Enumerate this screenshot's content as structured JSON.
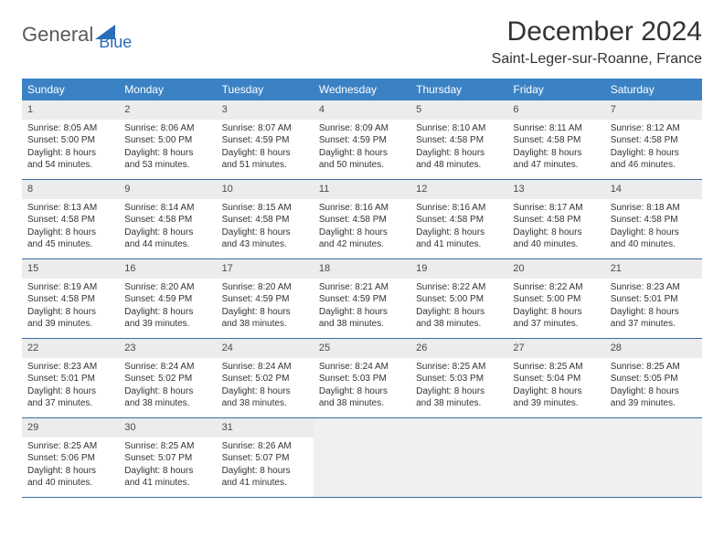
{
  "logo": {
    "text1": "General",
    "text2": "Blue",
    "color_gray": "#6a6a6a",
    "color_blue": "#2a6db8"
  },
  "title": "December 2024",
  "location": "Saint-Leger-sur-Roanne, France",
  "colors": {
    "header_bg": "#3b82c4",
    "header_text": "#ffffff",
    "daynum_bg": "#ececec",
    "border": "#3b6ea0",
    "empty_bg": "#f0f0f0"
  },
  "columns": [
    "Sunday",
    "Monday",
    "Tuesday",
    "Wednesday",
    "Thursday",
    "Friday",
    "Saturday"
  ],
  "weeks": [
    [
      {
        "n": "1",
        "sr": "Sunrise: 8:05 AM",
        "ss": "Sunset: 5:00 PM",
        "d1": "Daylight: 8 hours",
        "d2": "and 54 minutes."
      },
      {
        "n": "2",
        "sr": "Sunrise: 8:06 AM",
        "ss": "Sunset: 5:00 PM",
        "d1": "Daylight: 8 hours",
        "d2": "and 53 minutes."
      },
      {
        "n": "3",
        "sr": "Sunrise: 8:07 AM",
        "ss": "Sunset: 4:59 PM",
        "d1": "Daylight: 8 hours",
        "d2": "and 51 minutes."
      },
      {
        "n": "4",
        "sr": "Sunrise: 8:09 AM",
        "ss": "Sunset: 4:59 PM",
        "d1": "Daylight: 8 hours",
        "d2": "and 50 minutes."
      },
      {
        "n": "5",
        "sr": "Sunrise: 8:10 AM",
        "ss": "Sunset: 4:58 PM",
        "d1": "Daylight: 8 hours",
        "d2": "and 48 minutes."
      },
      {
        "n": "6",
        "sr": "Sunrise: 8:11 AM",
        "ss": "Sunset: 4:58 PM",
        "d1": "Daylight: 8 hours",
        "d2": "and 47 minutes."
      },
      {
        "n": "7",
        "sr": "Sunrise: 8:12 AM",
        "ss": "Sunset: 4:58 PM",
        "d1": "Daylight: 8 hours",
        "d2": "and 46 minutes."
      }
    ],
    [
      {
        "n": "8",
        "sr": "Sunrise: 8:13 AM",
        "ss": "Sunset: 4:58 PM",
        "d1": "Daylight: 8 hours",
        "d2": "and 45 minutes."
      },
      {
        "n": "9",
        "sr": "Sunrise: 8:14 AM",
        "ss": "Sunset: 4:58 PM",
        "d1": "Daylight: 8 hours",
        "d2": "and 44 minutes."
      },
      {
        "n": "10",
        "sr": "Sunrise: 8:15 AM",
        "ss": "Sunset: 4:58 PM",
        "d1": "Daylight: 8 hours",
        "d2": "and 43 minutes."
      },
      {
        "n": "11",
        "sr": "Sunrise: 8:16 AM",
        "ss": "Sunset: 4:58 PM",
        "d1": "Daylight: 8 hours",
        "d2": "and 42 minutes."
      },
      {
        "n": "12",
        "sr": "Sunrise: 8:16 AM",
        "ss": "Sunset: 4:58 PM",
        "d1": "Daylight: 8 hours",
        "d2": "and 41 minutes."
      },
      {
        "n": "13",
        "sr": "Sunrise: 8:17 AM",
        "ss": "Sunset: 4:58 PM",
        "d1": "Daylight: 8 hours",
        "d2": "and 40 minutes."
      },
      {
        "n": "14",
        "sr": "Sunrise: 8:18 AM",
        "ss": "Sunset: 4:58 PM",
        "d1": "Daylight: 8 hours",
        "d2": "and 40 minutes."
      }
    ],
    [
      {
        "n": "15",
        "sr": "Sunrise: 8:19 AM",
        "ss": "Sunset: 4:58 PM",
        "d1": "Daylight: 8 hours",
        "d2": "and 39 minutes."
      },
      {
        "n": "16",
        "sr": "Sunrise: 8:20 AM",
        "ss": "Sunset: 4:59 PM",
        "d1": "Daylight: 8 hours",
        "d2": "and 39 minutes."
      },
      {
        "n": "17",
        "sr": "Sunrise: 8:20 AM",
        "ss": "Sunset: 4:59 PM",
        "d1": "Daylight: 8 hours",
        "d2": "and 38 minutes."
      },
      {
        "n": "18",
        "sr": "Sunrise: 8:21 AM",
        "ss": "Sunset: 4:59 PM",
        "d1": "Daylight: 8 hours",
        "d2": "and 38 minutes."
      },
      {
        "n": "19",
        "sr": "Sunrise: 8:22 AM",
        "ss": "Sunset: 5:00 PM",
        "d1": "Daylight: 8 hours",
        "d2": "and 38 minutes."
      },
      {
        "n": "20",
        "sr": "Sunrise: 8:22 AM",
        "ss": "Sunset: 5:00 PM",
        "d1": "Daylight: 8 hours",
        "d2": "and 37 minutes."
      },
      {
        "n": "21",
        "sr": "Sunrise: 8:23 AM",
        "ss": "Sunset: 5:01 PM",
        "d1": "Daylight: 8 hours",
        "d2": "and 37 minutes."
      }
    ],
    [
      {
        "n": "22",
        "sr": "Sunrise: 8:23 AM",
        "ss": "Sunset: 5:01 PM",
        "d1": "Daylight: 8 hours",
        "d2": "and 37 minutes."
      },
      {
        "n": "23",
        "sr": "Sunrise: 8:24 AM",
        "ss": "Sunset: 5:02 PM",
        "d1": "Daylight: 8 hours",
        "d2": "and 38 minutes."
      },
      {
        "n": "24",
        "sr": "Sunrise: 8:24 AM",
        "ss": "Sunset: 5:02 PM",
        "d1": "Daylight: 8 hours",
        "d2": "and 38 minutes."
      },
      {
        "n": "25",
        "sr": "Sunrise: 8:24 AM",
        "ss": "Sunset: 5:03 PM",
        "d1": "Daylight: 8 hours",
        "d2": "and 38 minutes."
      },
      {
        "n": "26",
        "sr": "Sunrise: 8:25 AM",
        "ss": "Sunset: 5:03 PM",
        "d1": "Daylight: 8 hours",
        "d2": "and 38 minutes."
      },
      {
        "n": "27",
        "sr": "Sunrise: 8:25 AM",
        "ss": "Sunset: 5:04 PM",
        "d1": "Daylight: 8 hours",
        "d2": "and 39 minutes."
      },
      {
        "n": "28",
        "sr": "Sunrise: 8:25 AM",
        "ss": "Sunset: 5:05 PM",
        "d1": "Daylight: 8 hours",
        "d2": "and 39 minutes."
      }
    ],
    [
      {
        "n": "29",
        "sr": "Sunrise: 8:25 AM",
        "ss": "Sunset: 5:06 PM",
        "d1": "Daylight: 8 hours",
        "d2": "and 40 minutes."
      },
      {
        "n": "30",
        "sr": "Sunrise: 8:25 AM",
        "ss": "Sunset: 5:07 PM",
        "d1": "Daylight: 8 hours",
        "d2": "and 41 minutes."
      },
      {
        "n": "31",
        "sr": "Sunrise: 8:26 AM",
        "ss": "Sunset: 5:07 PM",
        "d1": "Daylight: 8 hours",
        "d2": "and 41 minutes."
      },
      null,
      null,
      null,
      null
    ]
  ]
}
